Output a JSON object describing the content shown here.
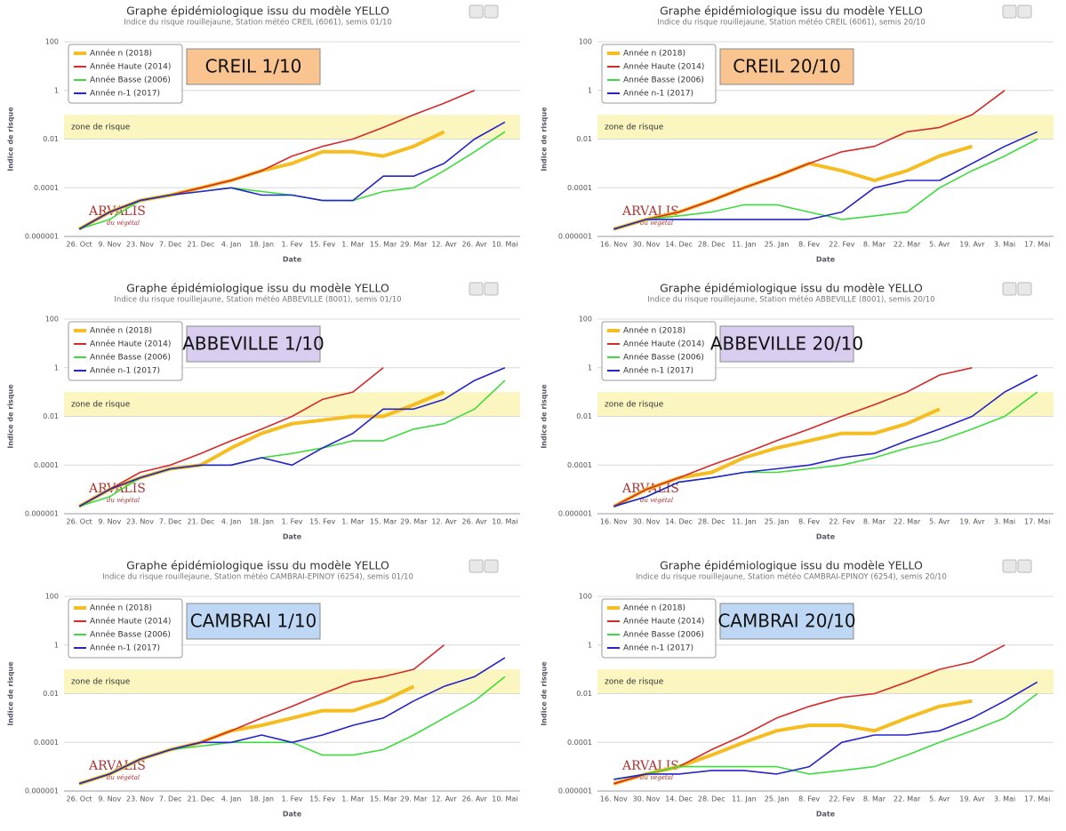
{
  "chart_data": [
    {
      "type": "line",
      "title": "Graphe épidémiologique issu du modèle YELLO",
      "subtitle": "Indice du risque rouillejaune, Station météo CREIL (6061), semis 01/10",
      "callout": "CREIL 1/10",
      "callout_color": "#f9c48f",
      "ylabel": "Indice de risque",
      "xlabel": "Date",
      "log_y": true,
      "grid": true,
      "legend": "top-left",
      "zone": {
        "label": "zone de risque",
        "range": [
          0.01,
          0.1
        ],
        "color": "#fbf5c0"
      },
      "logo": "ARVALIS",
      "logo_tagline": "du végétal",
      "ylim": [
        1e-06,
        100
      ],
      "yticks": [
        {
          "value": 1e-06,
          "label": "0.000001"
        },
        0.0001,
        0.01,
        1,
        100
      ],
      "categories": [
        "26. Oct",
        "9. Nov",
        "23. Nov",
        "7. Dec",
        "21. Dec",
        "4. Jan",
        "18. Jan",
        "1. Fev",
        "15. Fev",
        "1. Mar",
        "15. Mar",
        "29. Mar",
        "12. Avr",
        "26. Avr",
        "10. Mai"
      ],
      "series": [
        {
          "name": "Année n (2018)",
          "color": "#f5bd1f",
          "values": [
            2e-06,
            1e-05,
            3e-05,
            5e-05,
            0.0001,
            0.0002,
            0.0005,
            0.001,
            0.003,
            0.003,
            0.002,
            0.005,
            0.02,
            null,
            null
          ]
        },
        {
          "name": "Année Haute (2014)",
          "color": "#d42a2a",
          "values": [
            2e-06,
            1e-05,
            3e-05,
            5e-05,
            0.0001,
            0.0002,
            0.0005,
            0.002,
            0.005,
            0.01,
            0.03,
            0.1,
            0.3,
            1,
            null
          ]
        },
        {
          "name": "Année Basse (2006)",
          "color": "#3ddc3d",
          "values": [
            2e-06,
            5e-06,
            3e-05,
            5e-05,
            7e-05,
            0.0001,
            7e-05,
            5e-05,
            3e-05,
            3e-05,
            7e-05,
            0.0001,
            0.0005,
            0.003,
            0.02
          ]
        },
        {
          "name": "Année n-1 (2017)",
          "color": "#2424c8",
          "values": [
            2e-06,
            1e-05,
            3e-05,
            5e-05,
            7e-05,
            0.0001,
            5e-05,
            5e-05,
            3e-05,
            3e-05,
            0.0003,
            0.0003,
            0.001,
            0.01,
            0.05
          ]
        }
      ]
    },
    {
      "type": "line",
      "title": "Graphe épidémiologique issu du modèle YELLO",
      "subtitle": "Indice du risque rouillejaune, Station météo CREIL (6061), semis 20/10",
      "callout": "CREIL 20/10",
      "callout_color": "#f9c48f",
      "ylabel": "Indice de risque",
      "xlabel": "Date",
      "log_y": true,
      "grid": true,
      "legend": "top-left",
      "zone": {
        "label": "zone de risque",
        "range": [
          0.01,
          0.1
        ],
        "color": "#fbf5c0"
      },
      "logo": "ARVALIS",
      "logo_tagline": "du végétal",
      "ylim": [
        1e-06,
        100
      ],
      "yticks": [
        {
          "value": 1e-06,
          "label": "0.000001"
        },
        0.0001,
        0.01,
        1,
        100
      ],
      "categories": [
        "16. Nov",
        "30. Nov",
        "14. Dec",
        "28. Dec",
        "11. Jan",
        "25. Jan",
        "8. Fev",
        "22. Fev",
        "8. Mar",
        "22. Mar",
        "5. Avr",
        "19. Avr",
        "3. Mai",
        "17. Mai"
      ],
      "series": [
        {
          "name": "Année n (2018)",
          "color": "#f5bd1f",
          "values": [
            2e-06,
            5e-06,
            1e-05,
            3e-05,
            0.0001,
            0.0003,
            0.001,
            0.0005,
            0.0002,
            0.0005,
            0.002,
            0.005,
            null,
            null
          ]
        },
        {
          "name": "Année Haute (2014)",
          "color": "#d42a2a",
          "values": [
            2e-06,
            5e-06,
            1e-05,
            3e-05,
            0.0001,
            0.0003,
            0.001,
            0.003,
            0.005,
            0.02,
            0.03,
            0.1,
            1,
            null
          ]
        },
        {
          "name": "Année Basse (2006)",
          "color": "#3ddc3d",
          "values": [
            2e-06,
            5e-06,
            7e-06,
            1e-05,
            2e-05,
            2e-05,
            1e-05,
            5e-06,
            7e-06,
            1e-05,
            0.0001,
            0.0005,
            0.002,
            0.01
          ]
        },
        {
          "name": "Année n-1 (2017)",
          "color": "#2424c8",
          "values": [
            2e-06,
            5e-06,
            5e-06,
            5e-06,
            5e-06,
            5e-06,
            5e-06,
            1e-05,
            0.0001,
            0.0002,
            0.0002,
            0.001,
            0.005,
            0.02
          ]
        }
      ]
    },
    {
      "type": "line",
      "title": "Graphe épidémiologique issu du modèle YELLO",
      "subtitle": "Indice du risque rouillejaune, Station météo ABBEVILLE (8001), semis 01/10",
      "callout": "ABBEVILLE 1/10",
      "callout_color": "#d9cdf0",
      "ylabel": "Indice de risque",
      "xlabel": "Date",
      "log_y": true,
      "grid": true,
      "legend": "top-left",
      "zone": {
        "label": "zone de risque",
        "range": [
          0.01,
          0.1
        ],
        "color": "#fbf5c0"
      },
      "logo": "ARVALIS",
      "logo_tagline": "du végétal",
      "ylim": [
        1e-06,
        100
      ],
      "yticks": [
        {
          "value": 1e-06,
          "label": "0.000001"
        },
        0.0001,
        0.01,
        1,
        100
      ],
      "categories": [
        "26. Oct",
        "9. Nov",
        "23. Nov",
        "7. Dec",
        "21. Dec",
        "4. Jan",
        "18. Jan",
        "1. Fev",
        "15. Fev",
        "1. Mar",
        "15. Mar",
        "29. Mar",
        "12. Avr",
        "26. Avr",
        "10. Mai"
      ],
      "series": [
        {
          "name": "Année n (2018)",
          "color": "#f5bd1f",
          "values": [
            2e-06,
            1e-05,
            3e-05,
            7e-05,
            0.0001,
            0.0005,
            0.002,
            0.005,
            0.007,
            0.01,
            0.01,
            0.03,
            0.1,
            null,
            null
          ]
        },
        {
          "name": "Année Haute (2014)",
          "color": "#d42a2a",
          "values": [
            2e-06,
            1e-05,
            5e-05,
            0.0001,
            0.0003,
            0.001,
            0.003,
            0.01,
            0.05,
            0.1,
            1,
            null,
            null,
            null,
            null
          ]
        },
        {
          "name": "Année Basse (2006)",
          "color": "#3ddc3d",
          "values": [
            2e-06,
            5e-06,
            3e-05,
            7e-05,
            0.0001,
            0.0001,
            0.0002,
            0.0003,
            0.0005,
            0.001,
            0.001,
            0.003,
            0.005,
            0.02,
            0.3
          ]
        },
        {
          "name": "Année n-1 (2017)",
          "color": "#2424c8",
          "values": [
            2e-06,
            1e-05,
            3e-05,
            7e-05,
            0.0001,
            0.0001,
            0.0002,
            0.0001,
            0.0005,
            0.002,
            0.02,
            0.02,
            0.05,
            0.3,
            1
          ]
        }
      ]
    },
    {
      "type": "line",
      "title": "Graphe épidémiologique issu du modèle YELLO",
      "subtitle": "Indice du risque rouillejaune, Station météo ABBEVILLE (8001), semis 20/10",
      "callout": "ABBEVILLE 20/10",
      "callout_color": "#d9cdf0",
      "ylabel": "Indice de risque",
      "xlabel": "Date",
      "log_y": true,
      "grid": true,
      "legend": "top-left",
      "zone": {
        "label": "zone de risque",
        "range": [
          0.01,
          0.1
        ],
        "color": "#fbf5c0"
      },
      "logo": "ARVALIS",
      "logo_tagline": "du végétal",
      "ylim": [
        1e-06,
        100
      ],
      "yticks": [
        {
          "value": 1e-06,
          "label": "0.000001"
        },
        0.0001,
        0.01,
        1,
        100
      ],
      "categories": [
        "16. Nov",
        "30. Nov",
        "14. Dec",
        "28. Dec",
        "11. Jan",
        "25. Jan",
        "8. Fev",
        "22. Fev",
        "8. Mar",
        "22. Mar",
        "5. Avr",
        "19. Avr",
        "3. Mai",
        "17. Mai"
      ],
      "series": [
        {
          "name": "Année n (2018)",
          "color": "#f5bd1f",
          "values": [
            2e-06,
            1e-05,
            3e-05,
            5e-05,
            0.0002,
            0.0005,
            0.001,
            0.002,
            0.002,
            0.005,
            0.02,
            null,
            null,
            null
          ]
        },
        {
          "name": "Année Haute (2014)",
          "color": "#d42a2a",
          "values": [
            2e-06,
            1e-05,
            3e-05,
            0.0001,
            0.0003,
            0.001,
            0.003,
            0.01,
            0.03,
            0.1,
            0.5,
            1,
            null,
            null
          ]
        },
        {
          "name": "Année Basse (2006)",
          "color": "#3ddc3d",
          "values": [
            2e-06,
            5e-06,
            2e-05,
            3e-05,
            5e-05,
            5e-05,
            7e-05,
            0.0001,
            0.0002,
            0.0005,
            0.001,
            0.003,
            0.01,
            0.1
          ]
        },
        {
          "name": "Année n-1 (2017)",
          "color": "#2424c8",
          "values": [
            2e-06,
            5e-06,
            2e-05,
            3e-05,
            5e-05,
            7e-05,
            0.0001,
            0.0002,
            0.0003,
            0.001,
            0.003,
            0.01,
            0.1,
            0.5
          ]
        }
      ]
    },
    {
      "type": "line",
      "title": "Graphe épidémiologique issu du modèle YELLO",
      "subtitle": "Indice du risque rouillejaune, Station météo CAMBRAI-EPINOY (6254), semis 01/10",
      "callout": "CAMBRAI 1/10",
      "callout_color": "#bdd7f5",
      "ylabel": "Indice de risque",
      "xlabel": "Date",
      "log_y": true,
      "grid": true,
      "legend": "top-left",
      "zone": {
        "label": "zone de risque",
        "range": [
          0.01,
          0.1
        ],
        "color": "#fbf5c0"
      },
      "logo": "ARVALIS",
      "logo_tagline": "du végétal",
      "ylim": [
        1e-06,
        100
      ],
      "yticks": [
        {
          "value": 1e-06,
          "label": "0.000001"
        },
        0.0001,
        0.01,
        1,
        100
      ],
      "categories": [
        "26. Oct",
        "9. Nov",
        "23. Nov",
        "7. Dec",
        "21. Dec",
        "4. Jan",
        "18. Jan",
        "1. Fev",
        "15. Fev",
        "1. Mar",
        "15. Mar",
        "29. Mar",
        "12. Avr",
        "26. Avr",
        "10. Mai"
      ],
      "series": [
        {
          "name": "Année n (2018)",
          "color": "#f5bd1f",
          "values": [
            2e-06,
            5e-06,
            2e-05,
            5e-05,
            0.0001,
            0.0003,
            0.0005,
            0.001,
            0.002,
            0.002,
            0.005,
            0.02,
            null,
            null,
            null
          ]
        },
        {
          "name": "Année Haute (2014)",
          "color": "#d42a2a",
          "values": [
            2e-06,
            5e-06,
            2e-05,
            5e-05,
            0.0001,
            0.0003,
            0.001,
            0.003,
            0.01,
            0.03,
            0.05,
            0.1,
            1,
            null,
            null
          ]
        },
        {
          "name": "Année Basse (2006)",
          "color": "#3ddc3d",
          "values": [
            2e-06,
            5e-06,
            2e-05,
            5e-05,
            7e-05,
            0.0001,
            0.0001,
            0.0001,
            3e-05,
            3e-05,
            5e-05,
            0.0002,
            0.001,
            0.005,
            0.05
          ]
        },
        {
          "name": "Année n-1 (2017)",
          "color": "#2424c8",
          "values": [
            2e-06,
            5e-06,
            2e-05,
            5e-05,
            0.0001,
            0.0001,
            0.0002,
            0.0001,
            0.0002,
            0.0005,
            0.001,
            0.005,
            0.02,
            0.05,
            0.3
          ]
        }
      ]
    },
    {
      "type": "line",
      "title": "Graphe épidémiologique issu du modèle YELLO",
      "subtitle": "Indice du risque rouillejaune, Station météo CAMBRAI-EPINOY (6254), semis 20/10",
      "callout": "CAMBRAI 20/10",
      "callout_color": "#bdd7f5",
      "ylabel": "Indice de risque",
      "xlabel": "Date",
      "log_y": true,
      "grid": true,
      "legend": "top-left",
      "zone": {
        "label": "zone de risque",
        "range": [
          0.01,
          0.1
        ],
        "color": "#fbf5c0"
      },
      "logo": "ARVALIS",
      "logo_tagline": "du végétal",
      "ylim": [
        1e-06,
        100
      ],
      "yticks": [
        {
          "value": 1e-06,
          "label": "0.000001"
        },
        0.0001,
        0.01,
        1,
        100
      ],
      "categories": [
        "16. Nov",
        "30. Nov",
        "14. Dec",
        "28. Dec",
        "11. Jan",
        "25. Jan",
        "8. Fev",
        "22. Fev",
        "8. Mar",
        "22. Mar",
        "5. Avr",
        "19. Avr",
        "3. Mai",
        "17. Mai"
      ],
      "series": [
        {
          "name": "Année n (2018)",
          "color": "#f5bd1f",
          "values": [
            2e-06,
            5e-06,
            1e-05,
            3e-05,
            0.0001,
            0.0003,
            0.0005,
            0.0005,
            0.0003,
            0.001,
            0.003,
            0.005,
            null,
            null
          ]
        },
        {
          "name": "Année Haute (2014)",
          "color": "#d42a2a",
          "values": [
            2e-06,
            5e-06,
            1e-05,
            5e-05,
            0.0002,
            0.001,
            0.003,
            0.007,
            0.01,
            0.03,
            0.1,
            0.2,
            1,
            null
          ]
        },
        {
          "name": "Année Basse (2006)",
          "color": "#3ddc3d",
          "values": [
            3e-06,
            5e-06,
            1e-05,
            1e-05,
            1e-05,
            1e-05,
            5e-06,
            7e-06,
            1e-05,
            3e-05,
            0.0001,
            0.0003,
            0.001,
            0.01
          ]
        },
        {
          "name": "Année n-1 (2017)",
          "color": "#2424c8",
          "values": [
            3e-06,
            5e-06,
            5e-06,
            7e-06,
            7e-06,
            5e-06,
            1e-05,
            0.0001,
            0.0002,
            0.0002,
            0.0003,
            0.001,
            0.005,
            0.03
          ]
        }
      ]
    }
  ]
}
